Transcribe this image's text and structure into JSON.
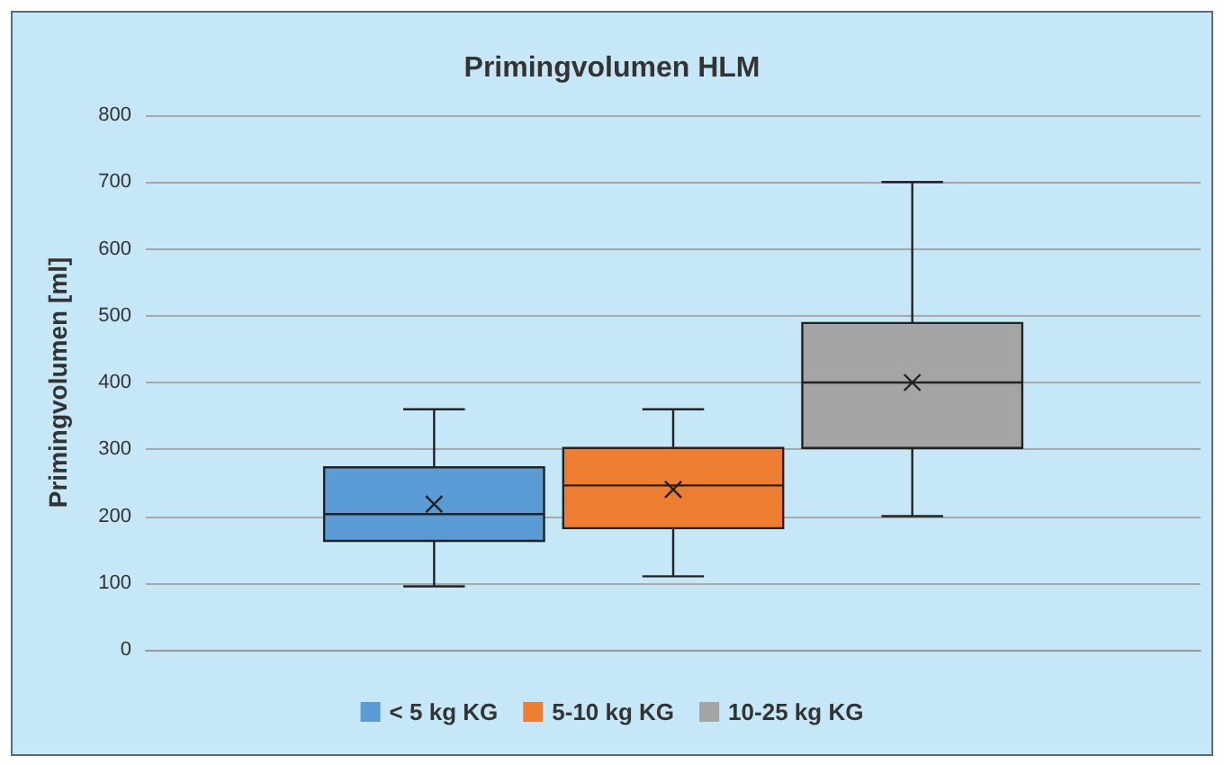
{
  "chart_data": {
    "type": "box",
    "title": "Primingvolumen HLM",
    "ylabel": "Primingvolumen [ml]",
    "categories": [
      null
    ],
    "series": [
      {
        "name": "< 5 kg KG",
        "color": "#5b9bd5",
        "boxes": [
          {
            "low": 95,
            "q1": 163,
            "median": 203,
            "q3": 273,
            "high": 360,
            "mean": 218
          }
        ]
      },
      {
        "name": "5-10 kg KG",
        "color": "#ed7d31",
        "boxes": [
          {
            "low": 110,
            "q1": 182,
            "median": 246,
            "q3": 302,
            "high": 360,
            "mean": 240
          }
        ]
      },
      {
        "name": "10-25 kg KG",
        "color": "#a5a5a5",
        "boxes": [
          {
            "low": 200,
            "q1": 302,
            "median": 400,
            "q3": 489,
            "high": 700,
            "mean": 400
          }
        ]
      }
    ],
    "ylim": [
      0,
      800
    ],
    "yticks": [
      0,
      100,
      200,
      300,
      400,
      500,
      600,
      700,
      800
    ],
    "grid": "y",
    "legend": "bottom"
  }
}
